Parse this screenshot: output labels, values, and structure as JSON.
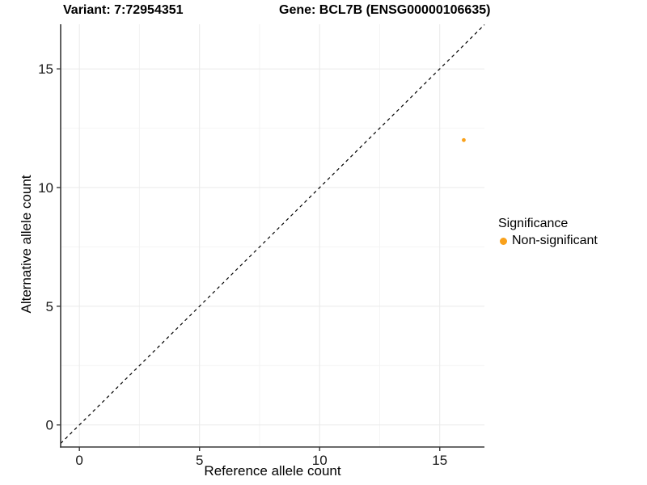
{
  "chart_data": {
    "type": "scatter",
    "title_left": "Variant: 7:72954351",
    "title_right": "Gene: BCL7B (ENSG00000106635)",
    "xlabel": "Reference allele count",
    "ylabel": "Alternative allele count",
    "x_ticks": [
      0,
      5,
      10,
      15
    ],
    "y_ticks": [
      0,
      5,
      10,
      15
    ],
    "x_minor": [
      2.5,
      7.5,
      12.5
    ],
    "y_minor": [
      2.5,
      7.5,
      12.5
    ],
    "xlim": [
      -0.78,
      16.86
    ],
    "ylim": [
      -0.93,
      16.88
    ],
    "grid": "major+minor on white, no panel border, left and bottom axis lines only",
    "points": [
      {
        "x": 16,
        "y": 12,
        "series": "Non-significant"
      }
    ],
    "reference_line": {
      "type": "identity y=x",
      "style": "dashed",
      "color": "#000000"
    },
    "legend": {
      "title": "Significance",
      "position": "right",
      "items": [
        {
          "label": "Non-significant",
          "color": "#F9A11B"
        }
      ]
    },
    "colors": {
      "point": "#F9A11B",
      "axis": "#3a3a3a",
      "tick_text": "#1a1a1a",
      "grid_major": "#e9e9e9",
      "grid_minor": "#f4f4f4",
      "background": "#ffffff"
    }
  }
}
